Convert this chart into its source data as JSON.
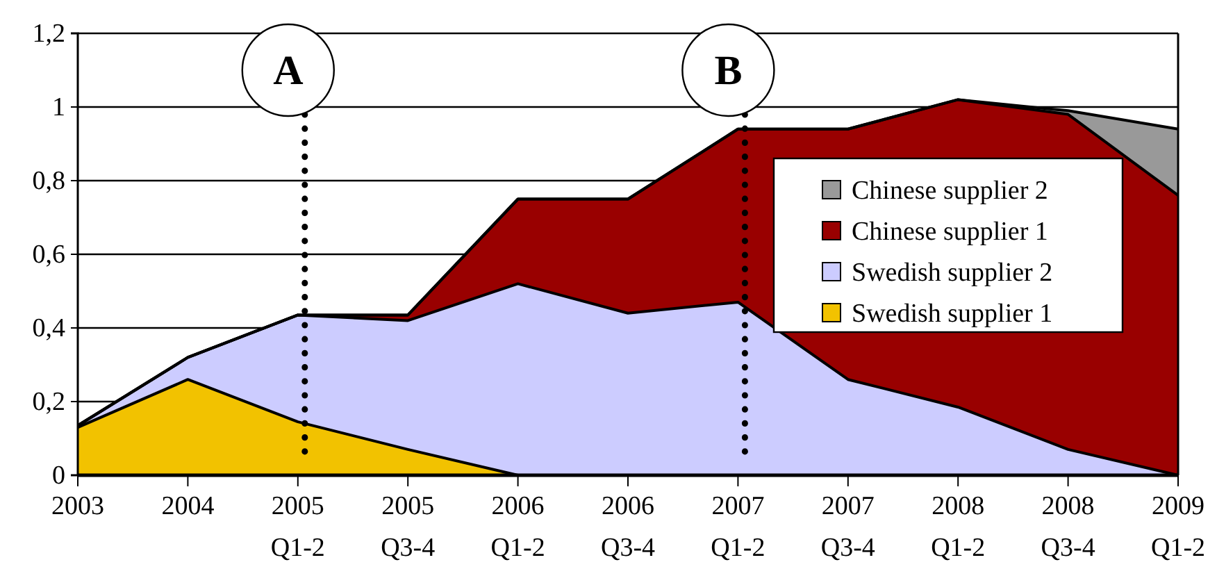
{
  "chart_data": {
    "type": "area",
    "stacked": true,
    "categories": [
      "2003",
      "2004",
      "2005\nQ1-2",
      "2005\nQ3-4",
      "2006\nQ1-2",
      "2006\nQ3-4",
      "2007\nQ1-2",
      "2007\nQ3-4",
      "2008\nQ1-2",
      "2008\nQ3-4",
      "2009\nQ1-2"
    ],
    "series": [
      {
        "name": "Swedish supplier 1",
        "color": "#f2c200",
        "values": [
          0.13,
          0.26,
          0.145,
          0.07,
          0,
          0,
          0,
          0,
          0,
          0,
          0
        ]
      },
      {
        "name": "Swedish supplier 2",
        "color": "#ccccff",
        "values": [
          0.005,
          0.06,
          0.29,
          0.35,
          0.52,
          0.44,
          0.47,
          0.26,
          0.185,
          0.07,
          0
        ]
      },
      {
        "name": "Chinese supplier 1",
        "color": "#990000",
        "values": [
          0,
          0,
          0,
          0.015,
          0.23,
          0.31,
          0.47,
          0.68,
          0.835,
          0.91,
          0.76
        ]
      },
      {
        "name": "Chinese supplier 2",
        "color": "#999999",
        "values": [
          0,
          0,
          0,
          0,
          0,
          0,
          0,
          0,
          0,
          0.01,
          0.18
        ]
      }
    ],
    "ylim": [
      0,
      1.2
    ],
    "yticks": [
      {
        "value": 0,
        "label": "0"
      },
      {
        "value": 0.2,
        "label": "0,2"
      },
      {
        "value": 0.4,
        "label": "0,4"
      },
      {
        "value": 0.6,
        "label": "0,6"
      },
      {
        "value": 0.8,
        "label": "0,8"
      },
      {
        "value": 1,
        "label": "1"
      },
      {
        "value": 1.2,
        "label": "1,2"
      }
    ],
    "grid": "y",
    "legend": "right",
    "ref_lines": [
      {
        "axis": "x",
        "value": "2005\nQ1-2",
        "label": "A",
        "line_style": "dotted"
      },
      {
        "axis": "x",
        "value": "2007\nQ1-2",
        "label": "B",
        "line_style": "dotted"
      }
    ]
  }
}
